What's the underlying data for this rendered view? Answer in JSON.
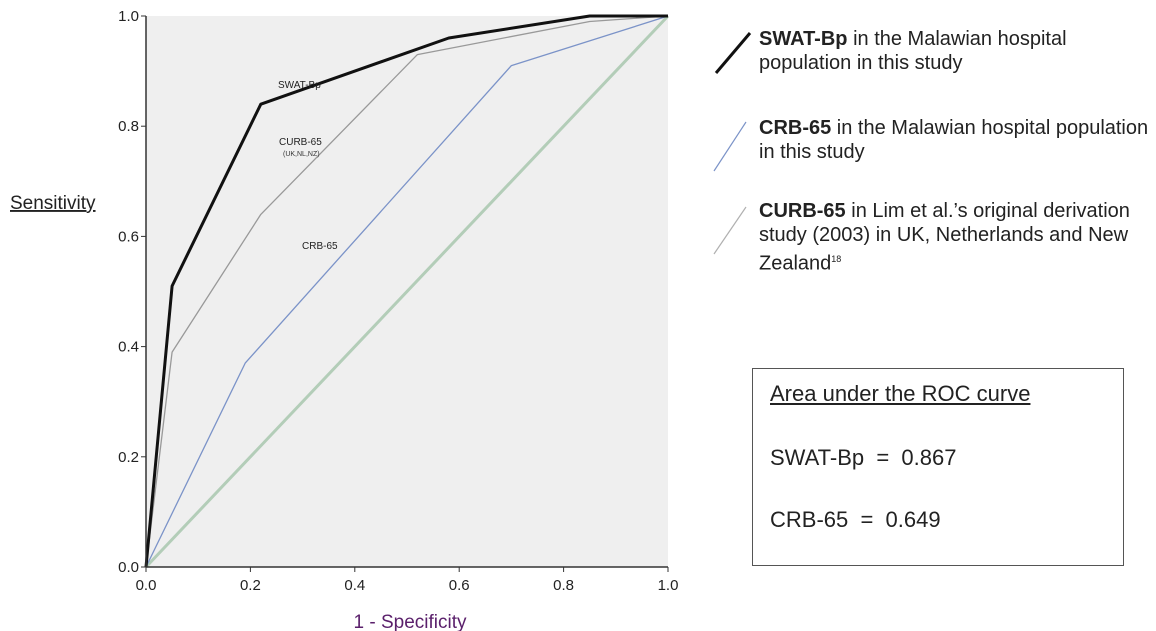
{
  "chart_data": {
    "type": "line",
    "xlabel": "1 - Specificity",
    "ylabel": "Sensitivity",
    "xlim": [
      0,
      1
    ],
    "ylim": [
      0,
      1
    ],
    "x_ticks": [
      "0.0",
      "0.2",
      "0.4",
      "0.6",
      "0.8",
      "1.0"
    ],
    "y_ticks": [
      "0.0",
      "0.2",
      "0.4",
      "0.6",
      "0.8",
      "1.0"
    ],
    "grid": false,
    "legend_position": "right",
    "series": [
      {
        "name": "SWAT-Bp",
        "label_text": "SWAT-Bp",
        "color": "#111111",
        "points": [
          [
            0,
            0
          ],
          [
            0.05,
            0.51
          ],
          [
            0.22,
            0.84
          ],
          [
            0.58,
            0.96
          ],
          [
            0.85,
            1.0
          ],
          [
            1.0,
            1.0
          ]
        ]
      },
      {
        "name": "CURB-65",
        "label_text": "CURB-65",
        "label_sub": "(UK,NL,NZ)",
        "color": "#999999",
        "points": [
          [
            0,
            0
          ],
          [
            0.05,
            0.39
          ],
          [
            0.22,
            0.64
          ],
          [
            0.52,
            0.93
          ],
          [
            0.85,
            0.99
          ],
          [
            1.0,
            1.0
          ]
        ]
      },
      {
        "name": "CRB-65",
        "label_text": "CRB-65",
        "color": "#7b93c8",
        "points": [
          [
            0,
            0
          ],
          [
            0.19,
            0.37
          ],
          [
            0.7,
            0.91
          ],
          [
            1.0,
            1.0
          ]
        ]
      },
      {
        "name": "Reference line",
        "color": "#b3cdb8",
        "points": [
          [
            0,
            0
          ],
          [
            1.0,
            1.0
          ]
        ]
      }
    ]
  },
  "legend": [
    {
      "bold": "SWAT-Bp",
      "text": " in the Malawian hospital population in this study",
      "color": "#111111"
    },
    {
      "bold": "CRB-65",
      "text": " in the Malawian hospital population in this study",
      "color": "#7b93c8"
    },
    {
      "bold": "CURB-65",
      "text": " in Lim et al.’s original derivation study (2003) in UK, Netherlands and New Zealand",
      "sup": "18",
      "color": "#b0b0b0"
    }
  ],
  "auc_box": {
    "title": "Area under the ROC curve",
    "rows": [
      "SWAT-Bp  =  0.867",
      "CRB-65  =  0.649"
    ]
  },
  "colors": {
    "plot_background": "#efefef",
    "axis": "#333333"
  }
}
